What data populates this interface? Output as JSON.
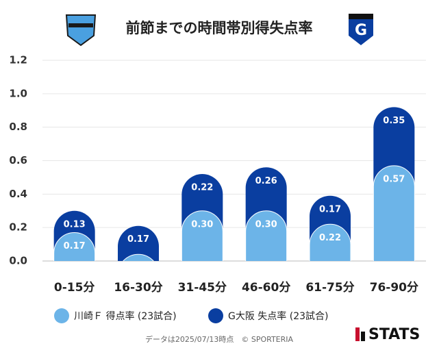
{
  "chart_data": {
    "type": "stacked-bar",
    "title": "前節までの時間帯別得失点率",
    "categories": [
      "0-15分",
      "16-30分",
      "31-45分",
      "46-60分",
      "61-75分",
      "76-90分"
    ],
    "series": [
      {
        "name": "川崎Ｆ 得点率 (23試合)",
        "color": "#6cb4e8",
        "values": [
          0.17,
          0.04,
          0.3,
          0.3,
          0.22,
          0.57
        ],
        "value_labels": [
          "0.17",
          null,
          "0.30",
          "0.30",
          "0.22",
          "0.57"
        ]
      },
      {
        "name": "G大阪 失点率 (23試合)",
        "color": "#0a3ea0",
        "values": [
          0.13,
          0.17,
          0.22,
          0.26,
          0.17,
          0.35
        ],
        "value_labels": [
          "0.13",
          "0.17",
          "0.22",
          "0.26",
          "0.17",
          "0.35"
        ]
      }
    ],
    "ylim": [
      0,
      1.2
    ],
    "yticks": [
      {
        "value": 0,
        "label": "0.0"
      },
      {
        "value": 0.2,
        "label": "0.2"
      },
      {
        "value": 0.4,
        "label": "0.4"
      },
      {
        "value": 0.6,
        "label": "0.6"
      },
      {
        "value": 0.8,
        "label": "0.8"
      },
      {
        "value": 1.0,
        "label": "1.0"
      },
      {
        "value": 1.2,
        "label": "1.2"
      }
    ],
    "grid": true,
    "footer": "データは2025/07/13時点　© SPORTERIA",
    "brand": "STATS"
  }
}
